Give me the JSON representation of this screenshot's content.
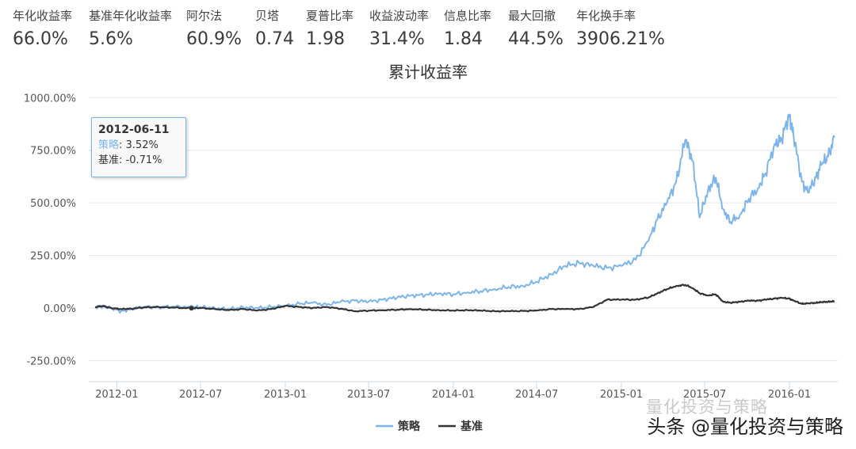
{
  "metrics": [
    {
      "label": "年化收益率",
      "value": "66.0%"
    },
    {
      "label": "基准年化收益率",
      "value": "5.6%"
    },
    {
      "label": "阿尔法",
      "value": "60.9%"
    },
    {
      "label": "贝塔",
      "value": "0.74"
    },
    {
      "label": "夏普比率",
      "value": "1.98"
    },
    {
      "label": "收益波动率",
      "value": "31.4%"
    },
    {
      "label": "信息比率",
      "value": "1.84"
    },
    {
      "label": "最大回撤",
      "value": "44.5%"
    },
    {
      "label": "年化换手率",
      "value": "3906.21%"
    }
  ],
  "tooltip": {
    "date": "2012-06-11",
    "strategy_name": "策略",
    "strategy_value": "3.52%",
    "benchmark_name": "基准",
    "benchmark_value": "-0.71%"
  },
  "watermark": {
    "text": "头条 @量化投资与策略",
    "ghost_text": "量化投资与策略"
  },
  "colors": {
    "strategy": "#7cb5ec",
    "benchmark": "#333333",
    "grid": "#e6e6e6",
    "axis": "#ccd6eb"
  },
  "chart_data": {
    "type": "line",
    "title": "累计收益率",
    "xlabel": "",
    "ylabel": "",
    "x_range": [
      "2011-11-01",
      "2016-04-15"
    ],
    "ylim": [
      -350,
      1050
    ],
    "yticks": [
      -250,
      0,
      250,
      500,
      750,
      1000
    ],
    "ytick_labels": [
      "-250.00%",
      "0.00%",
      "250.00%",
      "500.00%",
      "750.00%",
      "1000.00%"
    ],
    "xticks": [
      "2012-01-01",
      "2012-07-01",
      "2013-01-01",
      "2013-07-01",
      "2014-01-01",
      "2014-07-01",
      "2015-01-01",
      "2015-07-01",
      "2016-01-01"
    ],
    "xtick_labels": [
      "2012-01",
      "2012-07",
      "2013-01",
      "2013-07",
      "2014-01",
      "2014-07",
      "2015-01",
      "2015-07",
      "2016-01"
    ],
    "grid": true,
    "legend": "bottom-center",
    "series": [
      {
        "name": "策略",
        "x": [
          "2011-11-15",
          "2011-12-01",
          "2011-12-20",
          "2012-01-10",
          "2012-02-01",
          "2012-03-01",
          "2012-04-01",
          "2012-05-01",
          "2012-06-11",
          "2012-07-01",
          "2012-08-01",
          "2012-09-01",
          "2012-10-01",
          "2012-11-01",
          "2012-12-01",
          "2013-01-01",
          "2013-02-01",
          "2013-03-01",
          "2013-04-01",
          "2013-05-01",
          "2013-06-01",
          "2013-07-01",
          "2013-08-01",
          "2013-09-01",
          "2013-10-01",
          "2013-11-01",
          "2013-12-01",
          "2014-01-01",
          "2014-02-01",
          "2014-03-01",
          "2014-04-01",
          "2014-05-01",
          "2014-06-01",
          "2014-07-01",
          "2014-08-01",
          "2014-09-01",
          "2014-10-01",
          "2014-11-01",
          "2014-12-01",
          "2015-01-01",
          "2015-02-01",
          "2015-03-01",
          "2015-03-20",
          "2015-04-10",
          "2015-04-30",
          "2015-05-20",
          "2015-06-05",
          "2015-06-20",
          "2015-07-08",
          "2015-07-25",
          "2015-08-10",
          "2015-08-26",
          "2015-09-15",
          "2015-10-05",
          "2015-10-25",
          "2015-11-10",
          "2015-11-30",
          "2015-12-15",
          "2015-12-31",
          "2016-01-10",
          "2016-01-28",
          "2016-02-10",
          "2016-02-28",
          "2016-03-10",
          "2016-03-25",
          "2016-04-08"
        ],
        "values": [
          5,
          8,
          0,
          -15,
          -5,
          8,
          3,
          8,
          3.52,
          5,
          0,
          -5,
          3,
          0,
          5,
          10,
          20,
          25,
          15,
          30,
          35,
          30,
          40,
          50,
          60,
          62,
          70,
          65,
          75,
          80,
          90,
          100,
          105,
          125,
          160,
          200,
          215,
          200,
          190,
          200,
          230,
          320,
          420,
          500,
          600,
          800,
          700,
          430,
          560,
          620,
          470,
          410,
          440,
          520,
          570,
          640,
          780,
          800,
          920,
          820,
          600,
          550,
          620,
          680,
          720,
          810
        ]
      },
      {
        "name": "基准",
        "x": [
          "2011-11-15",
          "2011-12-01",
          "2011-12-20",
          "2012-01-10",
          "2012-02-01",
          "2012-03-01",
          "2012-04-01",
          "2012-05-01",
          "2012-06-11",
          "2012-07-01",
          "2012-08-01",
          "2012-09-01",
          "2012-10-01",
          "2012-11-01",
          "2012-12-01",
          "2013-01-01",
          "2013-02-01",
          "2013-03-01",
          "2013-04-01",
          "2013-05-01",
          "2013-06-01",
          "2013-07-01",
          "2013-08-01",
          "2013-09-01",
          "2013-10-01",
          "2013-11-01",
          "2013-12-01",
          "2014-01-01",
          "2014-02-01",
          "2014-03-01",
          "2014-04-01",
          "2014-05-01",
          "2014-06-01",
          "2014-07-01",
          "2014-08-01",
          "2014-09-01",
          "2014-10-01",
          "2014-11-01",
          "2014-12-01",
          "2015-01-01",
          "2015-02-01",
          "2015-03-01",
          "2015-03-20",
          "2015-04-10",
          "2015-04-30",
          "2015-05-20",
          "2015-06-05",
          "2015-06-20",
          "2015-07-08",
          "2015-07-25",
          "2015-08-10",
          "2015-08-26",
          "2015-09-15",
          "2015-10-05",
          "2015-10-25",
          "2015-11-10",
          "2015-11-30",
          "2015-12-15",
          "2015-12-31",
          "2016-01-10",
          "2016-01-28",
          "2016-02-10",
          "2016-02-28",
          "2016-03-10",
          "2016-03-25",
          "2016-04-08"
        ],
        "values": [
          5,
          10,
          0,
          -5,
          -3,
          3,
          5,
          2,
          -0.71,
          0,
          -5,
          -10,
          -5,
          -12,
          -5,
          10,
          5,
          0,
          5,
          -3,
          -15,
          -12,
          -10,
          -8,
          -5,
          -8,
          -10,
          -12,
          -10,
          -12,
          -15,
          -15,
          -14,
          -12,
          -5,
          -5,
          -5,
          5,
          40,
          40,
          40,
          50,
          70,
          90,
          105,
          110,
          95,
          70,
          60,
          65,
          30,
          25,
          30,
          35,
          35,
          40,
          45,
          48,
          45,
          35,
          20,
          22,
          25,
          28,
          30,
          32
        ]
      }
    ]
  }
}
